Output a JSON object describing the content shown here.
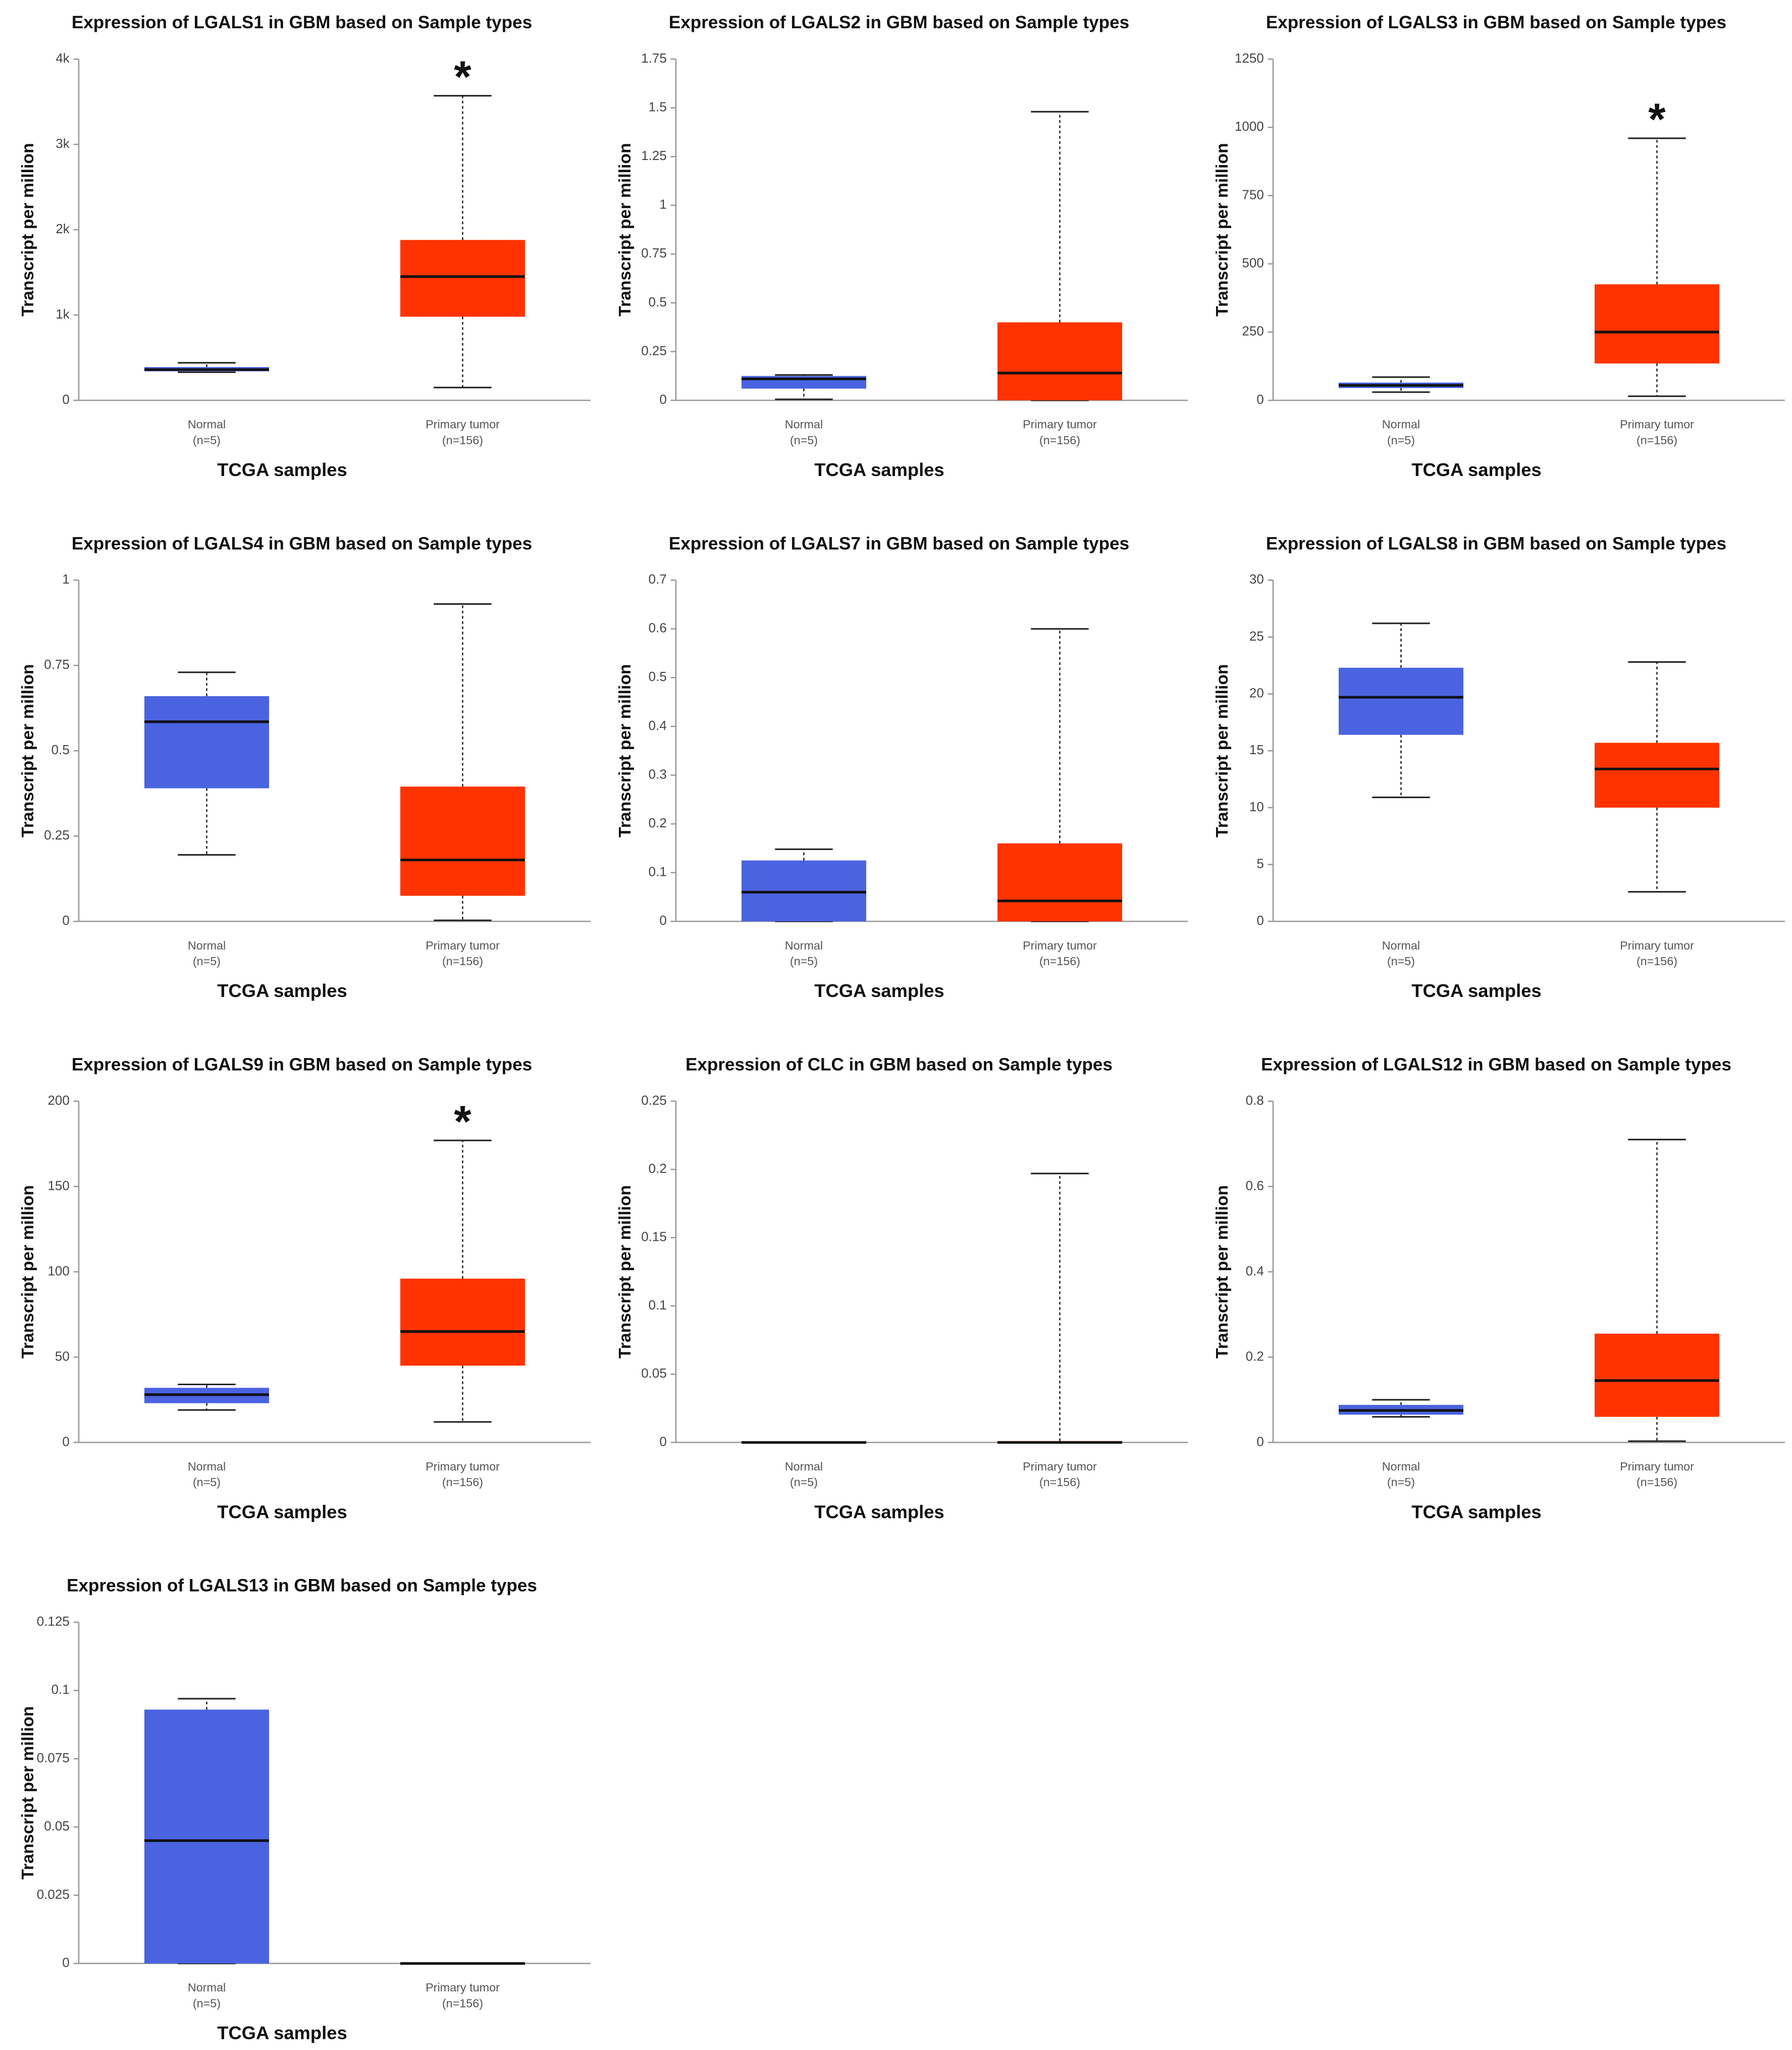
{
  "chart_data": [
    {
      "type": "box",
      "title": "Expression of LGALS1 in GBM based on Sample types",
      "xlabel": "TCGA samples",
      "ylabel": "Transcript per million",
      "categories": [
        "Normal",
        "Primary tumor"
      ],
      "category_notes": [
        "(n=5)",
        "(n=156)"
      ],
      "ylim": [
        0,
        4000
      ],
      "yticks": [
        0,
        {
          "value": 1000,
          "label": "1k"
        },
        {
          "value": 2000,
          "label": "2k"
        },
        {
          "value": 3000,
          "label": "3k"
        },
        {
          "value": 4000,
          "label": "4k"
        }
      ],
      "boxes": [
        {
          "color": "#4a63e0",
          "min": 330,
          "q1": 340,
          "median": 360,
          "q3": 390,
          "max": 440
        },
        {
          "color": "#ff3300",
          "min": 150,
          "q1": 980,
          "median": 1450,
          "q3": 1880,
          "max": 3570
        }
      ],
      "annotations": [
        {
          "text": "*",
          "category": "Primary tumor"
        }
      ]
    },
    {
      "type": "box",
      "title": "Expression of LGALS2 in GBM based on Sample types",
      "xlabel": "TCGA samples",
      "ylabel": "Transcript per million",
      "categories": [
        "Normal",
        "Primary tumor"
      ],
      "category_notes": [
        "(n=5)",
        "(n=156)"
      ],
      "ylim": [
        0,
        1.75
      ],
      "yticks": [
        0,
        0.25,
        0.5,
        0.75,
        1,
        1.25,
        1.5,
        1.75
      ],
      "boxes": [
        {
          "color": "#4a63e0",
          "min": 0.005,
          "q1": 0.06,
          "median": 0.11,
          "q3": 0.125,
          "max": 0.13
        },
        {
          "color": "#ff3300",
          "min": 0,
          "q1": 0,
          "median": 0.14,
          "q3": 0.4,
          "max": 1.48
        }
      ]
    },
    {
      "type": "box",
      "title": "Expression of LGALS3 in GBM based on Sample types",
      "xlabel": "TCGA samples",
      "ylabel": "Transcript per million",
      "categories": [
        "Normal",
        "Primary tumor"
      ],
      "category_notes": [
        "(n=5)",
        "(n=156)"
      ],
      "ylim": [
        0,
        1250
      ],
      "yticks": [
        0,
        250,
        500,
        750,
        1000,
        1250
      ],
      "boxes": [
        {
          "color": "#4a63e0",
          "min": 30,
          "q1": 45,
          "median": 55,
          "q3": 65,
          "max": 85
        },
        {
          "color": "#ff3300",
          "min": 15,
          "q1": 135,
          "median": 250,
          "q3": 425,
          "max": 960
        }
      ],
      "annotations": [
        {
          "text": "*",
          "category": "Primary tumor"
        }
      ]
    },
    {
      "type": "box",
      "title": "Expression of LGALS4 in GBM based on Sample types",
      "xlabel": "TCGA samples",
      "ylabel": "Transcript per million",
      "categories": [
        "Normal",
        "Primary tumor"
      ],
      "category_notes": [
        "(n=5)",
        "(n=156)"
      ],
      "ylim": [
        0,
        1
      ],
      "yticks": [
        0,
        0.25,
        0.5,
        0.75,
        1
      ],
      "boxes": [
        {
          "color": "#4a63e0",
          "min": 0.195,
          "q1": 0.39,
          "median": 0.585,
          "q3": 0.66,
          "max": 0.73
        },
        {
          "color": "#ff3300",
          "min": 0.003,
          "q1": 0.075,
          "median": 0.18,
          "q3": 0.395,
          "max": 0.93
        }
      ]
    },
    {
      "type": "box",
      "title": "Expression of LGALS7 in GBM based on Sample types",
      "xlabel": "TCGA samples",
      "ylabel": "Transcript per million",
      "categories": [
        "Normal",
        "Primary tumor"
      ],
      "category_notes": [
        "(n=5)",
        "(n=156)"
      ],
      "ylim": [
        0,
        0.7
      ],
      "yticks": [
        0,
        0.1,
        0.2,
        0.3,
        0.4,
        0.5,
        0.6,
        0.7
      ],
      "boxes": [
        {
          "color": "#4a63e0",
          "min": 0,
          "q1": 0,
          "median": 0.06,
          "q3": 0.125,
          "max": 0.148
        },
        {
          "color": "#ff3300",
          "min": 0,
          "q1": 0,
          "median": 0.042,
          "q3": 0.16,
          "max": 0.6
        }
      ]
    },
    {
      "type": "box",
      "title": "Expression of LGALS8 in GBM based on Sample types",
      "xlabel": "TCGA samples",
      "ylabel": "Transcript per million",
      "categories": [
        "Normal",
        "Primary tumor"
      ],
      "category_notes": [
        "(n=5)",
        "(n=156)"
      ],
      "ylim": [
        0,
        30
      ],
      "yticks": [
        0,
        5,
        10,
        15,
        20,
        25,
        30
      ],
      "boxes": [
        {
          "color": "#4a63e0",
          "min": 10.9,
          "q1": 16.4,
          "median": 19.7,
          "q3": 22.3,
          "max": 26.2
        },
        {
          "color": "#ff3300",
          "min": 2.6,
          "q1": 10,
          "median": 13.4,
          "q3": 15.7,
          "max": 22.8
        }
      ]
    },
    {
      "type": "box",
      "title": "Expression of LGALS9 in GBM based on Sample types",
      "xlabel": "TCGA samples",
      "ylabel": "Transcript per million",
      "categories": [
        "Normal",
        "Primary tumor"
      ],
      "category_notes": [
        "(n=5)",
        "(n=156)"
      ],
      "ylim": [
        0,
        200
      ],
      "yticks": [
        0,
        50,
        100,
        150,
        200
      ],
      "boxes": [
        {
          "color": "#4a63e0",
          "min": 19,
          "q1": 23,
          "median": 28,
          "q3": 32,
          "max": 34
        },
        {
          "color": "#ff3300",
          "min": 12,
          "q1": 45,
          "median": 65,
          "q3": 96,
          "max": 177
        }
      ],
      "annotations": [
        {
          "text": "*",
          "category": "Primary tumor"
        }
      ]
    },
    {
      "type": "box",
      "title": "Expression of CLC in GBM based on Sample types",
      "xlabel": "TCGA samples",
      "ylabel": "Transcript per million",
      "categories": [
        "Normal",
        "Primary tumor"
      ],
      "category_notes": [
        "(n=5)",
        "(n=156)"
      ],
      "ylim": [
        0,
        0.25
      ],
      "yticks": [
        0,
        0.05,
        0.1,
        0.15,
        0.2,
        0.25
      ],
      "boxes": [
        {
          "color": "#4a63e0",
          "min": 0,
          "q1": 0,
          "median": 0,
          "q3": 0,
          "max": 0
        },
        {
          "color": "#ff3300",
          "min": 0,
          "q1": 0,
          "median": 0,
          "q3": 0.001,
          "max": 0.197
        }
      ]
    },
    {
      "type": "box",
      "title": "Expression of LGALS12 in GBM based on Sample types",
      "xlabel": "TCGA samples",
      "ylabel": "Transcript per million",
      "categories": [
        "Normal",
        "Primary tumor"
      ],
      "category_notes": [
        "(n=5)",
        "(n=156)"
      ],
      "ylim": [
        0,
        0.8
      ],
      "yticks": [
        0,
        0.2,
        0.4,
        0.6,
        0.8
      ],
      "boxes": [
        {
          "color": "#4a63e0",
          "min": 0.06,
          "q1": 0.065,
          "median": 0.075,
          "q3": 0.088,
          "max": 0.1
        },
        {
          "color": "#ff3300",
          "min": 0.003,
          "q1": 0.06,
          "median": 0.145,
          "q3": 0.255,
          "max": 0.71
        }
      ]
    },
    {
      "type": "box",
      "title": "Expression of LGALS13 in GBM based on Sample types",
      "xlabel": "TCGA samples",
      "ylabel": "Transcript per million",
      "categories": [
        "Normal",
        "Primary tumor"
      ],
      "category_notes": [
        "(n=5)",
        "(n=156)"
      ],
      "ylim": [
        0,
        0.125
      ],
      "yticks": [
        0,
        0.025,
        0.05,
        0.075,
        0.1,
        0.125
      ],
      "boxes": [
        {
          "color": "#4a63e0",
          "min": 0,
          "q1": 0,
          "median": 0.045,
          "q3": 0.093,
          "max": 0.097
        },
        {
          "color": "#ff3300",
          "min": 0,
          "q1": 0,
          "median": 0,
          "q3": 0,
          "max": 0
        }
      ]
    }
  ]
}
